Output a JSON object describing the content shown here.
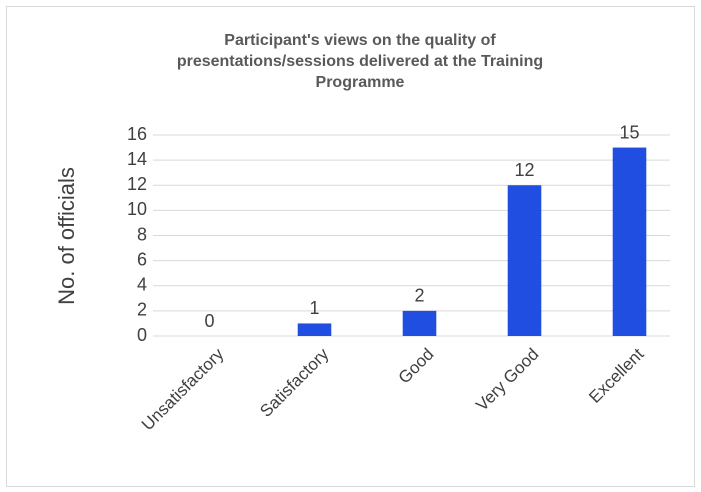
{
  "chart_data": {
    "type": "bar",
    "title": "Participant's views on the quality of presentations/sessions delivered at the Training Programme",
    "ylabel": "No. of officials",
    "categories": [
      "Unsatisfactory",
      "Satisfactory",
      "Good",
      "Very Good",
      "Excellent"
    ],
    "values": [
      0,
      1,
      2,
      12,
      15
    ],
    "color": "#1f4ee0",
    "ylim": [
      0,
      16
    ],
    "yticks": [
      0,
      2,
      4,
      6,
      8,
      10,
      12,
      14,
      16
    ],
    "grid": true
  }
}
